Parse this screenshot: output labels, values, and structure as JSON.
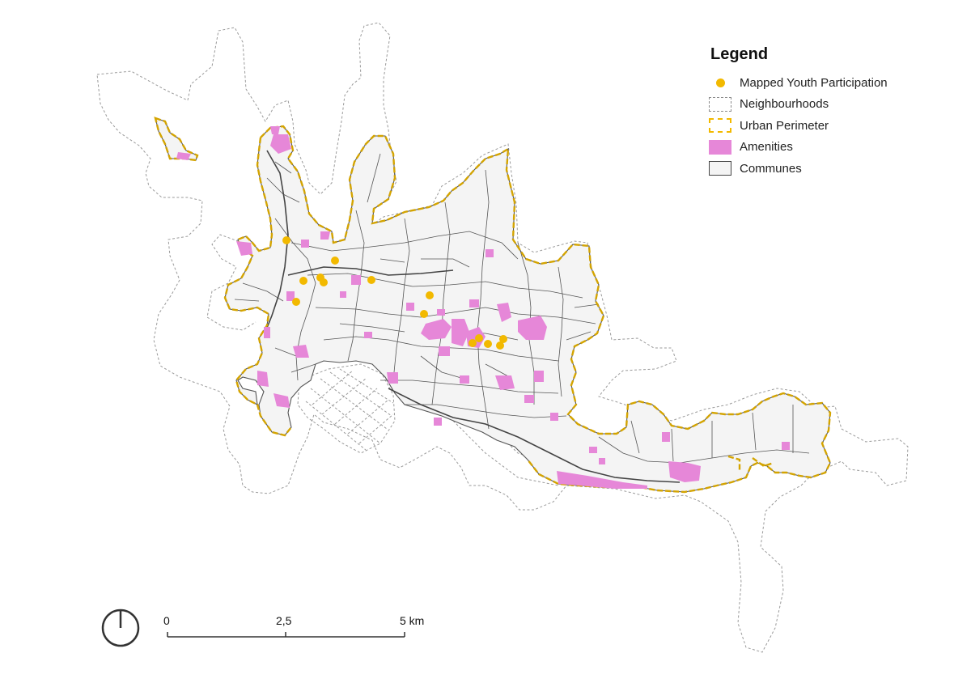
{
  "legend": {
    "title": "Legend",
    "items": [
      {
        "label": "Mapped Youth Participation",
        "symbol": "point",
        "color": "#f2b900"
      },
      {
        "label": "Neighbourhoods",
        "symbol": "dashed-outline",
        "color": "#8c8c8c"
      },
      {
        "label": "Urban Perimeter",
        "symbol": "dashed-thick-outline",
        "color": "#f2b900"
      },
      {
        "label": "Amenities",
        "symbol": "fill",
        "color": "#e687d8"
      },
      {
        "label": "Communes",
        "symbol": "solid-outline-fill",
        "color": "#444444"
      }
    ]
  },
  "scale_bar": {
    "labels": [
      "0",
      "2,5",
      "5 km"
    ]
  },
  "north_arrow": {
    "icon": "north-arrow-icon"
  },
  "colors": {
    "communes_fill": "#f4f4f4",
    "communes_stroke": "#555555",
    "neighbourhood_stroke": "#9a9a9a",
    "perimeter": "#d4a400",
    "amenities": "#e687d8",
    "participation": "#f2b900"
  }
}
